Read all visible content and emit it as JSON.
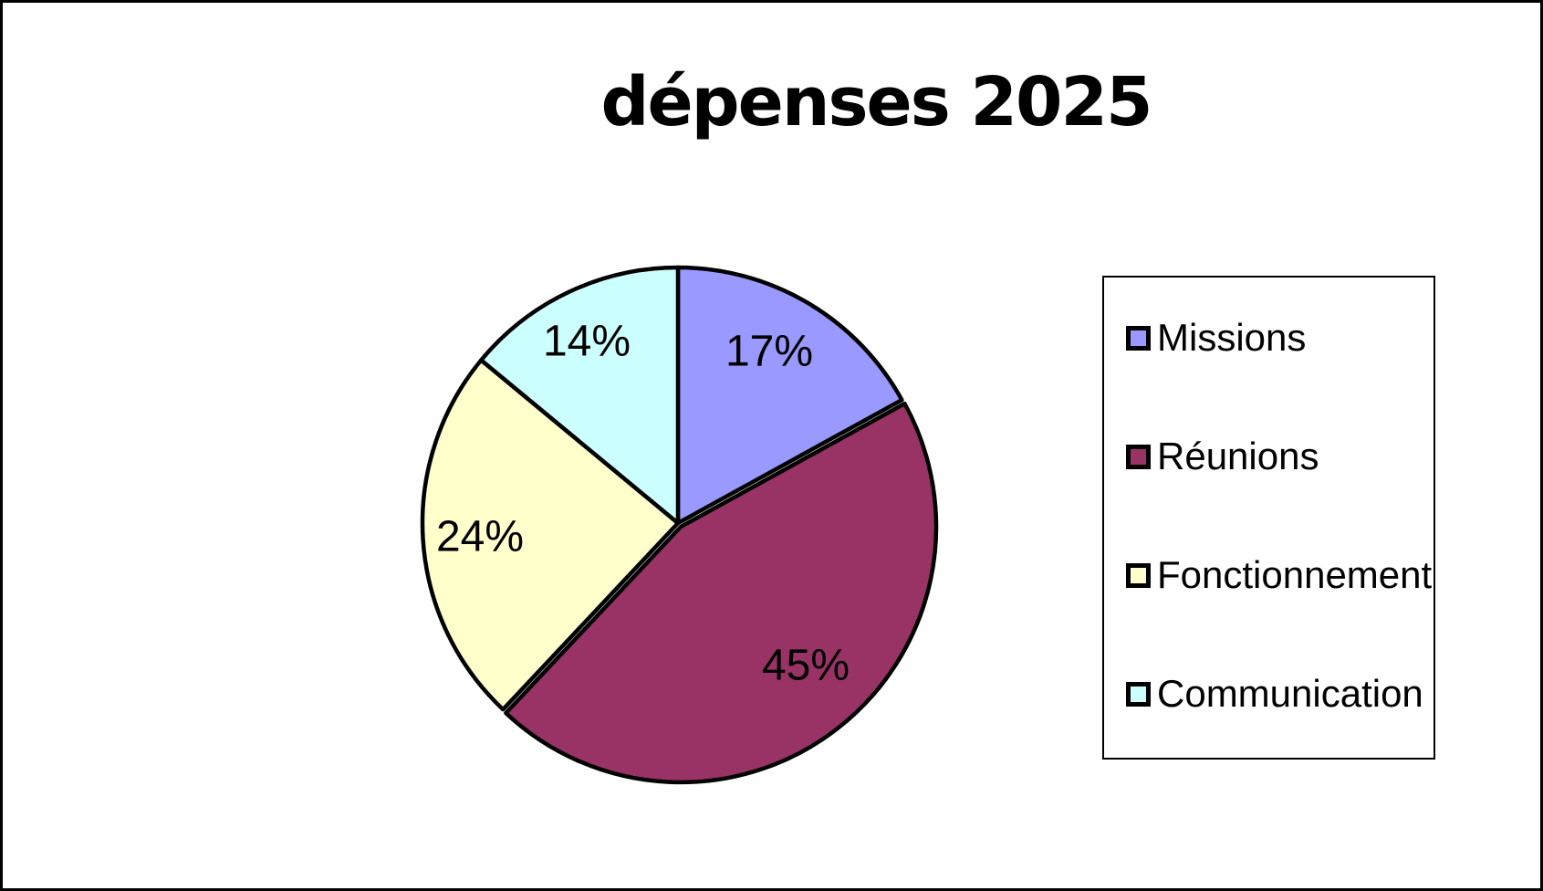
{
  "title": "dépenses 2025",
  "chart_data": {
    "type": "pie",
    "title": "dépenses 2025",
    "categories": [
      "Missions",
      "Réunions",
      "Fonctionnement",
      "Communication"
    ],
    "values": [
      17,
      45,
      24,
      14
    ],
    "unit": "%",
    "slice_labels": [
      "17%",
      "45%",
      "24%",
      "14%"
    ],
    "colors": [
      "#9999FF",
      "#993366",
      "#FFFFCC",
      "#CCFFFF"
    ],
    "stroke_color": "#000000",
    "start_angle_deg": 0,
    "direction": "clockwise",
    "legend_position": "right",
    "exploded_slice": "Réunions"
  },
  "legend": {
    "items": [
      {
        "label": "Missions",
        "color": "#9999FF"
      },
      {
        "label": "Réunions",
        "color": "#993366"
      },
      {
        "label": "Fonctionnement",
        "color": "#FFFFCC"
      },
      {
        "label": "Communication",
        "color": "#CCFFFF"
      }
    ]
  }
}
